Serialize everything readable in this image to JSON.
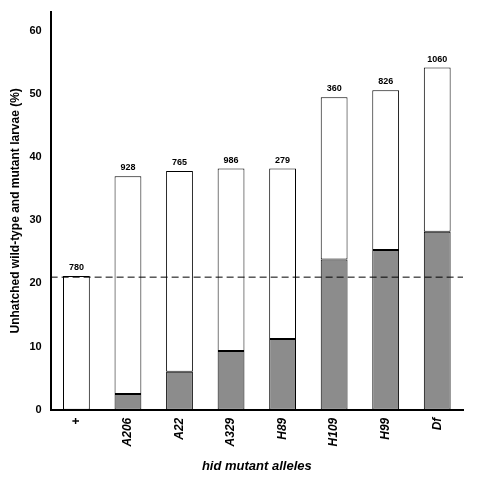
{
  "chart_data": {
    "type": "bar",
    "stacked": true,
    "x_label": "hid mutant alleles",
    "y_label": "Unhatched wild-type and mutant larvae (%)",
    "categories": [
      "+",
      "A206",
      "A22",
      "A329",
      "H89",
      "H109",
      "H99",
      "Df"
    ],
    "series": [
      {
        "color": "#8c8c8c",
        "values": [
          0,
          2.5,
          6,
          9.3,
          11.2,
          23.8,
          25.3,
          28.2
        ]
      },
      {
        "color": "#ffffff",
        "values": [
          21.2,
          34.5,
          31.8,
          28.9,
          27,
          25.7,
          25.3,
          26
        ]
      }
    ],
    "ylim": [
      0,
      63
    ],
    "yticks": [
      0,
      10,
      20,
      30,
      40,
      50,
      60
    ],
    "grid": false,
    "annotations": [
      {
        "category": "+",
        "text": "780"
      },
      {
        "category": "A206",
        "text": "928"
      },
      {
        "category": "A22",
        "text": "765"
      },
      {
        "category": "A329",
        "text": "986"
      },
      {
        "category": "H89",
        "text": "279"
      },
      {
        "category": "H109",
        "text": "360"
      },
      {
        "category": "H99",
        "text": "826"
      },
      {
        "category": "Df",
        "text": "1060"
      },
      {
        "type": "line",
        "y": 21,
        "line_style": "dashed"
      }
    ]
  }
}
